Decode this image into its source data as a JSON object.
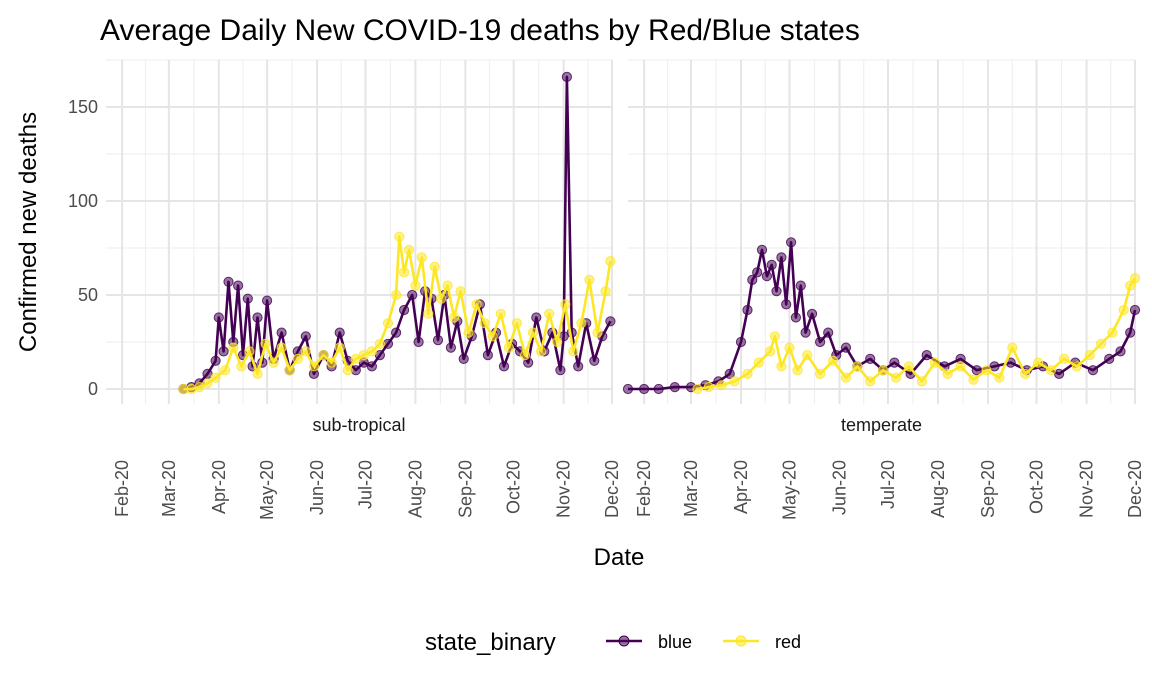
{
  "chart_data": {
    "type": "line",
    "title": "Average Daily New COVID-19 deaths by Red/Blue states",
    "xlabel": "Date",
    "ylabel": "Confirmed new deaths",
    "x_tick_labels": [
      "Feb-20",
      "Mar-20",
      "Apr-20",
      "May-20",
      "Jun-20",
      "Jul-20",
      "Aug-20",
      "Sep-20",
      "Oct-20",
      "Nov-20",
      "Dec-20"
    ],
    "x_ticks": [
      "2020-02-01",
      "2020-03-01",
      "2020-04-01",
      "2020-05-01",
      "2020-06-01",
      "2020-07-01",
      "2020-08-01",
      "2020-09-01",
      "2020-10-01",
      "2020-11-01",
      "2020-12-01"
    ],
    "xlim": [
      "2020-01-22",
      "2020-12-01"
    ],
    "y_ticks": [
      0,
      50,
      100,
      150
    ],
    "ylim": [
      -8,
      175
    ],
    "grid": true,
    "legend": {
      "title": "state_binary",
      "position": "bottom"
    },
    "series_styles": [
      {
        "name": "blue",
        "color": "#440154"
      },
      {
        "name": "red",
        "color": "#FDE725"
      }
    ],
    "panels": [
      {
        "label": "sub-tropical",
        "series": [
          {
            "name": "blue",
            "x": [
              "2020-03-10",
              "2020-03-15",
              "2020-03-20",
              "2020-03-25",
              "2020-03-30",
              "2020-04-01",
              "2020-04-04",
              "2020-04-07",
              "2020-04-10",
              "2020-04-13",
              "2020-04-16",
              "2020-04-19",
              "2020-04-22",
              "2020-04-25",
              "2020-04-28",
              "2020-05-01",
              "2020-05-05",
              "2020-05-10",
              "2020-05-15",
              "2020-05-20",
              "2020-05-25",
              "2020-05-30",
              "2020-06-05",
              "2020-06-10",
              "2020-06-15",
              "2020-06-20",
              "2020-06-25",
              "2020-06-30",
              "2020-07-05",
              "2020-07-10",
              "2020-07-15",
              "2020-07-20",
              "2020-07-25",
              "2020-07-30",
              "2020-08-03",
              "2020-08-07",
              "2020-08-11",
              "2020-08-15",
              "2020-08-19",
              "2020-08-23",
              "2020-08-27",
              "2020-08-31",
              "2020-09-05",
              "2020-09-10",
              "2020-09-15",
              "2020-09-20",
              "2020-09-25",
              "2020-09-30",
              "2020-10-05",
              "2020-10-10",
              "2020-10-15",
              "2020-10-20",
              "2020-10-25",
              "2020-10-30",
              "2020-11-01",
              "2020-11-03",
              "2020-11-06",
              "2020-11-10",
              "2020-11-15",
              "2020-11-20",
              "2020-11-25",
              "2020-11-30"
            ],
            "y": [
              0,
              1,
              3,
              8,
              15,
              38,
              20,
              57,
              25,
              55,
              18,
              48,
              12,
              38,
              14,
              47,
              16,
              30,
              10,
              20,
              28,
              8,
              18,
              12,
              30,
              15,
              10,
              14,
              12,
              18,
              24,
              30,
              42,
              50,
              25,
              52,
              48,
              26,
              50,
              22,
              36,
              16,
              28,
              45,
              18,
              30,
              12,
              24,
              20,
              14,
              38,
              20,
              30,
              10,
              28,
              166,
              30,
              12,
              35,
              15,
              28,
              36
            ]
          },
          {
            "name": "red",
            "x": [
              "2020-03-10",
              "2020-03-15",
              "2020-03-20",
              "2020-03-25",
              "2020-03-30",
              "2020-04-05",
              "2020-04-10",
              "2020-04-15",
              "2020-04-20",
              "2020-04-25",
              "2020-04-30",
              "2020-05-05",
              "2020-05-10",
              "2020-05-15",
              "2020-05-20",
              "2020-05-25",
              "2020-05-30",
              "2020-06-05",
              "2020-06-10",
              "2020-06-15",
              "2020-06-20",
              "2020-06-25",
              "2020-06-30",
              "2020-07-05",
              "2020-07-10",
              "2020-07-15",
              "2020-07-20",
              "2020-07-22",
              "2020-07-25",
              "2020-07-28",
              "2020-08-01",
              "2020-08-05",
              "2020-08-09",
              "2020-08-13",
              "2020-08-17",
              "2020-08-21",
              "2020-08-25",
              "2020-08-29",
              "2020-09-03",
              "2020-09-08",
              "2020-09-13",
              "2020-09-18",
              "2020-09-23",
              "2020-09-28",
              "2020-10-03",
              "2020-10-08",
              "2020-10-13",
              "2020-10-18",
              "2020-10-23",
              "2020-10-28",
              "2020-11-02",
              "2020-11-07",
              "2020-11-12",
              "2020-11-17",
              "2020-11-22",
              "2020-11-27",
              "2020-11-30"
            ],
            "y": [
              0,
              0,
              1,
              3,
              6,
              10,
              22,
              12,
              20,
              8,
              24,
              14,
              22,
              10,
              16,
              20,
              12,
              18,
              14,
              22,
              10,
              16,
              18,
              20,
              24,
              35,
              50,
              81,
              62,
              74,
              55,
              70,
              40,
              65,
              48,
              55,
              38,
              52,
              30,
              45,
              35,
              28,
              40,
              22,
              35,
              18,
              30,
              20,
              40,
              25,
              45,
              20,
              35,
              58,
              30,
              52,
              68
            ]
          }
        ]
      },
      {
        "label": "temperate",
        "series": [
          {
            "name": "blue",
            "x": [
              "2020-01-22",
              "2020-02-01",
              "2020-02-10",
              "2020-02-20",
              "2020-03-01",
              "2020-03-10",
              "2020-03-18",
              "2020-03-25",
              "2020-04-01",
              "2020-04-05",
              "2020-04-08",
              "2020-04-11",
              "2020-04-14",
              "2020-04-17",
              "2020-04-20",
              "2020-04-23",
              "2020-04-26",
              "2020-04-29",
              "2020-05-02",
              "2020-05-05",
              "2020-05-08",
              "2020-05-11",
              "2020-05-15",
              "2020-05-20",
              "2020-05-25",
              "2020-05-30",
              "2020-06-05",
              "2020-06-12",
              "2020-06-20",
              "2020-06-28",
              "2020-07-05",
              "2020-07-15",
              "2020-07-25",
              "2020-08-05",
              "2020-08-15",
              "2020-08-25",
              "2020-09-05",
              "2020-09-15",
              "2020-09-25",
              "2020-10-05",
              "2020-10-15",
              "2020-10-25",
              "2020-11-05",
              "2020-11-15",
              "2020-11-22",
              "2020-11-28",
              "2020-12-01"
            ],
            "y": [
              0,
              0,
              0,
              1,
              1,
              2,
              4,
              8,
              25,
              42,
              58,
              62,
              74,
              60,
              66,
              52,
              70,
              45,
              78,
              38,
              55,
              30,
              40,
              25,
              30,
              18,
              22,
              12,
              16,
              10,
              14,
              8,
              18,
              12,
              16,
              10,
              12,
              14,
              10,
              12,
              8,
              14,
              10,
              16,
              20,
              30,
              42
            ]
          },
          {
            "name": "red",
            "x": [
              "2020-03-05",
              "2020-03-12",
              "2020-03-20",
              "2020-03-28",
              "2020-04-05",
              "2020-04-12",
              "2020-04-19",
              "2020-04-22",
              "2020-04-26",
              "2020-05-01",
              "2020-05-06",
              "2020-05-12",
              "2020-05-20",
              "2020-05-28",
              "2020-06-05",
              "2020-06-12",
              "2020-06-20",
              "2020-06-28",
              "2020-07-06",
              "2020-07-14",
              "2020-07-22",
              "2020-07-30",
              "2020-08-07",
              "2020-08-15",
              "2020-08-23",
              "2020-08-31",
              "2020-09-08",
              "2020-09-16",
              "2020-09-24",
              "2020-10-02",
              "2020-10-10",
              "2020-10-18",
              "2020-10-26",
              "2020-11-03",
              "2020-11-10",
              "2020-11-17",
              "2020-11-24",
              "2020-11-28",
              "2020-12-01"
            ],
            "y": [
              0,
              1,
              2,
              4,
              8,
              14,
              20,
              28,
              12,
              22,
              10,
              18,
              8,
              15,
              6,
              12,
              4,
              10,
              6,
              12,
              4,
              14,
              8,
              12,
              5,
              10,
              6,
              22,
              8,
              14,
              10,
              16,
              12,
              18,
              24,
              30,
              42,
              55,
              59
            ]
          }
        ]
      }
    ]
  }
}
